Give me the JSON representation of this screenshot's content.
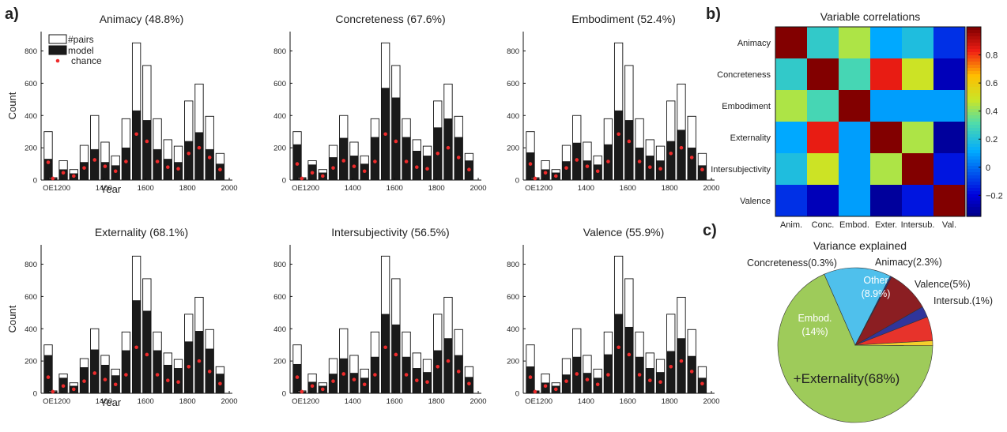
{
  "panel_labels": {
    "a": "a)",
    "b": "b)",
    "c": "c)"
  },
  "chart_data": [
    {
      "type": "bar",
      "panel": "a",
      "title": "Animacy (48.8%)",
      "xlabel": "Year",
      "ylabel": "Count",
      "ylim": [
        0,
        920
      ],
      "x_ticks": [
        "OE",
        "1200",
        "1400",
        "1600",
        "1800",
        "2000"
      ],
      "y_ticks": [
        0,
        200,
        400,
        600,
        800
      ],
      "legend": [
        "#pairs",
        "model",
        "chance"
      ],
      "legend_position": "top-left",
      "categories": [
        "OE",
        "1150",
        "1200",
        "1250",
        "1300",
        "1350",
        "1400",
        "1450",
        "1500",
        "1550",
        "1600",
        "1650",
        "1700",
        "1750",
        "1800",
        "1850",
        "1900",
        "1950"
      ],
      "series": [
        {
          "name": "#pairs",
          "values": [
            300,
            15,
            120,
            65,
            215,
            400,
            235,
            150,
            380,
            850,
            710,
            380,
            250,
            210,
            490,
            595,
            395,
            165
          ]
        },
        {
          "name": "model",
          "values": [
            130,
            10,
            65,
            40,
            110,
            190,
            110,
            90,
            200,
            430,
            370,
            190,
            130,
            110,
            240,
            295,
            190,
            100
          ]
        },
        {
          "name": "chance",
          "values": [
            110,
            10,
            45,
            25,
            75,
            125,
            85,
            55,
            115,
            285,
            240,
            115,
            80,
            70,
            165,
            200,
            140,
            65
          ]
        }
      ]
    },
    {
      "type": "bar",
      "panel": "a",
      "title": "Concreteness (67.6%)",
      "ylim": [
        0,
        920
      ],
      "x_ticks": [
        "OE",
        "1200",
        "1400",
        "1600",
        "1800",
        "2000"
      ],
      "y_ticks": [
        0,
        200,
        400,
        600,
        800
      ],
      "categories": [
        "OE",
        "1150",
        "1200",
        "1250",
        "1300",
        "1350",
        "1400",
        "1450",
        "1500",
        "1550",
        "1600",
        "1650",
        "1700",
        "1750",
        "1800",
        "1850",
        "1900",
        "1950"
      ],
      "series": [
        {
          "name": "#pairs",
          "values": [
            300,
            15,
            120,
            65,
            215,
            400,
            235,
            150,
            380,
            850,
            710,
            380,
            250,
            210,
            490,
            595,
            395,
            165
          ]
        },
        {
          "name": "model",
          "values": [
            220,
            10,
            95,
            45,
            140,
            260,
            150,
            100,
            265,
            570,
            510,
            265,
            180,
            150,
            325,
            380,
            265,
            120
          ]
        },
        {
          "name": "chance",
          "values": [
            100,
            10,
            45,
            25,
            75,
            120,
            85,
            55,
            115,
            285,
            240,
            115,
            80,
            70,
            165,
            200,
            140,
            65
          ]
        }
      ]
    },
    {
      "type": "bar",
      "panel": "a",
      "title": "Embodiment (52.4%)",
      "ylim": [
        0,
        920
      ],
      "x_ticks": [
        "OE",
        "1200",
        "1400",
        "1600",
        "1800",
        "2000"
      ],
      "y_ticks": [
        0,
        200,
        400,
        600,
        800
      ],
      "categories": [
        "OE",
        "1150",
        "1200",
        "1250",
        "1300",
        "1350",
        "1400",
        "1450",
        "1500",
        "1550",
        "1600",
        "1650",
        "1700",
        "1750",
        "1800",
        "1850",
        "1900",
        "1950"
      ],
      "series": [
        {
          "name": "#pairs",
          "values": [
            300,
            15,
            120,
            65,
            215,
            400,
            235,
            150,
            380,
            850,
            710,
            380,
            250,
            210,
            490,
            595,
            395,
            165
          ]
        },
        {
          "name": "model",
          "values": [
            170,
            10,
            65,
            45,
            115,
            230,
            120,
            95,
            220,
            430,
            370,
            200,
            150,
            120,
            240,
            310,
            200,
            90
          ]
        },
        {
          "name": "chance",
          "values": [
            100,
            10,
            45,
            25,
            75,
            125,
            85,
            55,
            115,
            285,
            240,
            115,
            80,
            70,
            165,
            200,
            140,
            65
          ]
        }
      ]
    },
    {
      "type": "bar",
      "panel": "a",
      "title": "Externality (68.1%)",
      "xlabel": "Year",
      "ylabel": "Count",
      "ylim": [
        0,
        920
      ],
      "x_ticks": [
        "OE",
        "1200",
        "1400",
        "1600",
        "1800",
        "2000"
      ],
      "y_ticks": [
        0,
        200,
        400,
        600,
        800
      ],
      "categories": [
        "OE",
        "1150",
        "1200",
        "1250",
        "1300",
        "1350",
        "1400",
        "1450",
        "1500",
        "1550",
        "1600",
        "1650",
        "1700",
        "1750",
        "1800",
        "1850",
        "1900",
        "1950"
      ],
      "series": [
        {
          "name": "#pairs",
          "values": [
            300,
            15,
            120,
            65,
            215,
            400,
            235,
            150,
            380,
            850,
            710,
            380,
            250,
            210,
            490,
            595,
            395,
            165
          ]
        },
        {
          "name": "model",
          "values": [
            235,
            10,
            95,
            45,
            160,
            270,
            175,
            110,
            265,
            575,
            510,
            265,
            175,
            155,
            320,
            385,
            275,
            120
          ]
        },
        {
          "name": "chance",
          "values": [
            100,
            10,
            45,
            25,
            75,
            125,
            85,
            55,
            115,
            285,
            240,
            115,
            80,
            70,
            165,
            200,
            135,
            60
          ]
        }
      ]
    },
    {
      "type": "bar",
      "panel": "a",
      "title": "Intersubjectivity (56.5%)",
      "ylim": [
        0,
        920
      ],
      "x_ticks": [
        "OE",
        "1200",
        "1400",
        "1600",
        "1800",
        "2000"
      ],
      "y_ticks": [
        0,
        200,
        400,
        600,
        800
      ],
      "categories": [
        "OE",
        "1150",
        "1200",
        "1250",
        "1300",
        "1350",
        "1400",
        "1450",
        "1500",
        "1550",
        "1600",
        "1650",
        "1700",
        "1750",
        "1800",
        "1850",
        "1900",
        "1950"
      ],
      "series": [
        {
          "name": "#pairs",
          "values": [
            300,
            15,
            120,
            65,
            215,
            400,
            235,
            150,
            380,
            850,
            710,
            380,
            250,
            210,
            490,
            595,
            395,
            165
          ]
        },
        {
          "name": "model",
          "values": [
            180,
            10,
            70,
            45,
            120,
            215,
            125,
            95,
            225,
            490,
            425,
            225,
            155,
            130,
            265,
            340,
            235,
            100
          ]
        },
        {
          "name": "chance",
          "values": [
            100,
            10,
            45,
            25,
            75,
            120,
            85,
            55,
            115,
            285,
            240,
            115,
            80,
            70,
            165,
            200,
            135,
            60
          ]
        }
      ]
    },
    {
      "type": "bar",
      "panel": "a",
      "title": "Valence (55.9%)",
      "ylim": [
        0,
        920
      ],
      "x_ticks": [
        "OE",
        "1200",
        "1400",
        "1600",
        "1800",
        "2000"
      ],
      "y_ticks": [
        0,
        200,
        400,
        600,
        800
      ],
      "categories": [
        "OE",
        "1150",
        "1200",
        "1250",
        "1300",
        "1350",
        "1400",
        "1450",
        "1500",
        "1550",
        "1600",
        "1650",
        "1700",
        "1750",
        "1800",
        "1850",
        "1900",
        "1950"
      ],
      "series": [
        {
          "name": "#pairs",
          "values": [
            300,
            15,
            120,
            65,
            215,
            400,
            235,
            150,
            380,
            850,
            710,
            380,
            250,
            210,
            490,
            595,
            395,
            165
          ]
        },
        {
          "name": "model",
          "values": [
            165,
            15,
            65,
            45,
            115,
            225,
            125,
            95,
            240,
            490,
            410,
            225,
            155,
            130,
            260,
            340,
            230,
            95
          ]
        },
        {
          "name": "chance",
          "values": [
            100,
            10,
            45,
            25,
            75,
            120,
            85,
            55,
            115,
            285,
            240,
            115,
            80,
            70,
            165,
            200,
            135,
            60
          ]
        }
      ]
    },
    {
      "type": "heatmap",
      "panel": "b",
      "title": "Variable correlations",
      "row_labels": [
        "Animacy",
        "Concreteness",
        "Embodiment",
        "Externality",
        "Intersubjectivity",
        "Valence"
      ],
      "col_labels": [
        "Anim.",
        "Conc.",
        "Embod.",
        "Exter.",
        "Intersub.",
        "Val."
      ],
      "values": [
        [
          1.0,
          0.25,
          0.45,
          0.12,
          0.2,
          -0.1
        ],
        [
          0.25,
          1.0,
          0.3,
          0.85,
          0.5,
          -0.25
        ],
        [
          0.45,
          0.3,
          1.0,
          0.1,
          0.1,
          0.1
        ],
        [
          0.12,
          0.85,
          0.1,
          1.0,
          0.45,
          -0.3
        ],
        [
          0.2,
          0.5,
          0.1,
          0.45,
          1.0,
          -0.15
        ],
        [
          -0.1,
          -0.25,
          0.1,
          -0.3,
          -0.15,
          1.0
        ]
      ],
      "colorbar_ticks": [
        "0.8",
        "0.6",
        "0.4",
        "0.2",
        "0",
        "−0.2"
      ],
      "vrange": [
        -0.35,
        1.0
      ]
    },
    {
      "type": "pie",
      "panel": "c",
      "title": "Variance explained",
      "slices": [
        {
          "label": "+Externality(68%)",
          "value": 68,
          "color": "#9ecb5a"
        },
        {
          "label": "Embod.",
          "sublabel": "(14%)",
          "value": 14,
          "color": "#4fc0ec"
        },
        {
          "label": "Concreteness(0.3%)",
          "value": 0.3,
          "color": "#2b2f8a"
        },
        {
          "label": "Other",
          "sublabel": "(8.9%)",
          "value": 8.9,
          "color": "#8b1e22"
        },
        {
          "label": "Animacy(2.3%)",
          "value": 2.3,
          "color": "#30359b"
        },
        {
          "label": "Valence(5%)",
          "value": 5,
          "color": "#e7332b"
        },
        {
          "label": "Intersub.(1%)",
          "value": 1,
          "color": "#f4cf2c"
        }
      ]
    }
  ],
  "colors": {
    "bar_outline": "#111111",
    "model_fill": "#1a1a1a",
    "chance_dot": "#ee2b2b"
  }
}
